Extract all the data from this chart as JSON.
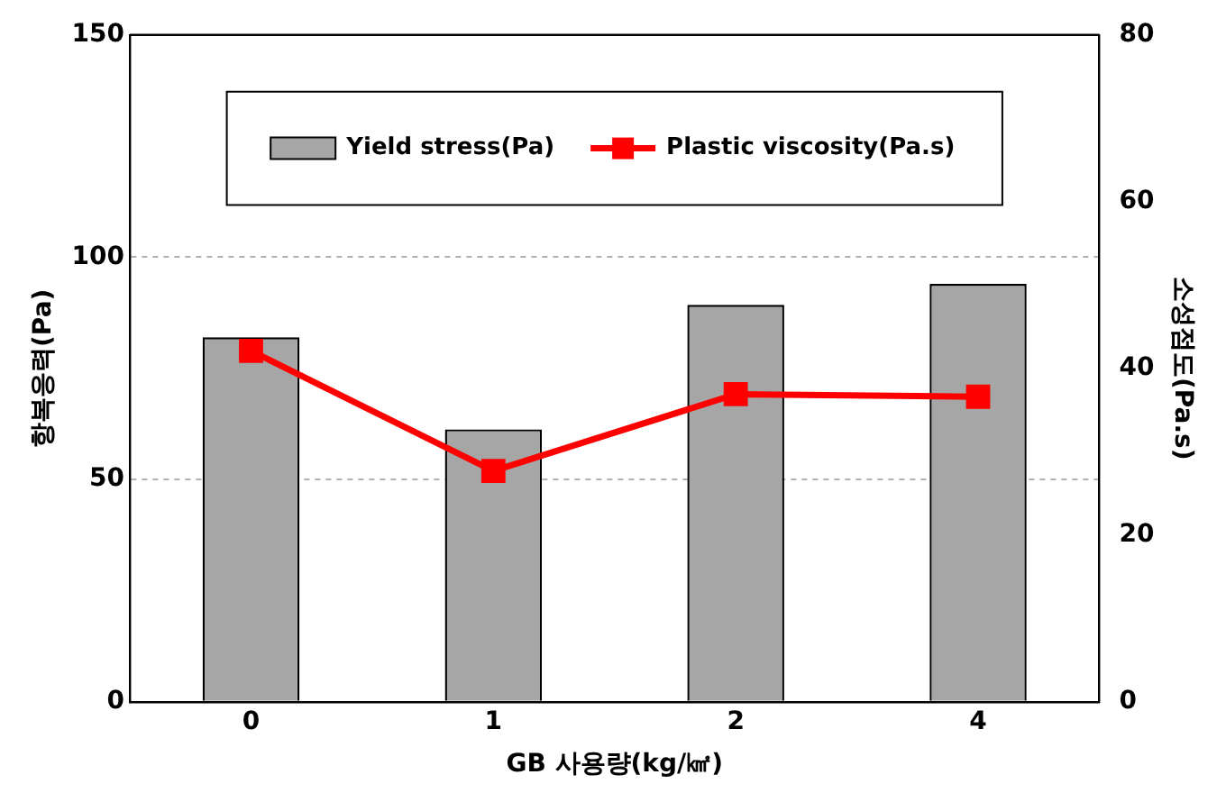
{
  "chart_data": {
    "type": "bar",
    "categories": [
      "0",
      "1",
      "2",
      "4"
    ],
    "xlabel": "GB 사용량(kg/㎢)",
    "ylabel": "항복응력(Pa)",
    "y2label": "소성점도(Pa.s)",
    "series": [
      {
        "name": "Yield stress(Pa)",
        "color": "#a6a6a6",
        "values": [
          82,
          61.3,
          89.3,
          94
        ]
      },
      {
        "name": "Plastic viscosity(Pa.s)",
        "type": "line",
        "axis": "y2",
        "color": "#ff0000",
        "values": [
          42.1,
          27.7,
          36.9,
          36.6
        ],
        "marker": "square"
      }
    ],
    "ylim": [
      0,
      150
    ],
    "yticks": [
      0,
      50,
      100,
      150
    ],
    "y2lim": [
      0,
      80
    ],
    "y2ticks": [
      0,
      20,
      40,
      60,
      80
    ],
    "grid": "y",
    "legend": "top"
  }
}
